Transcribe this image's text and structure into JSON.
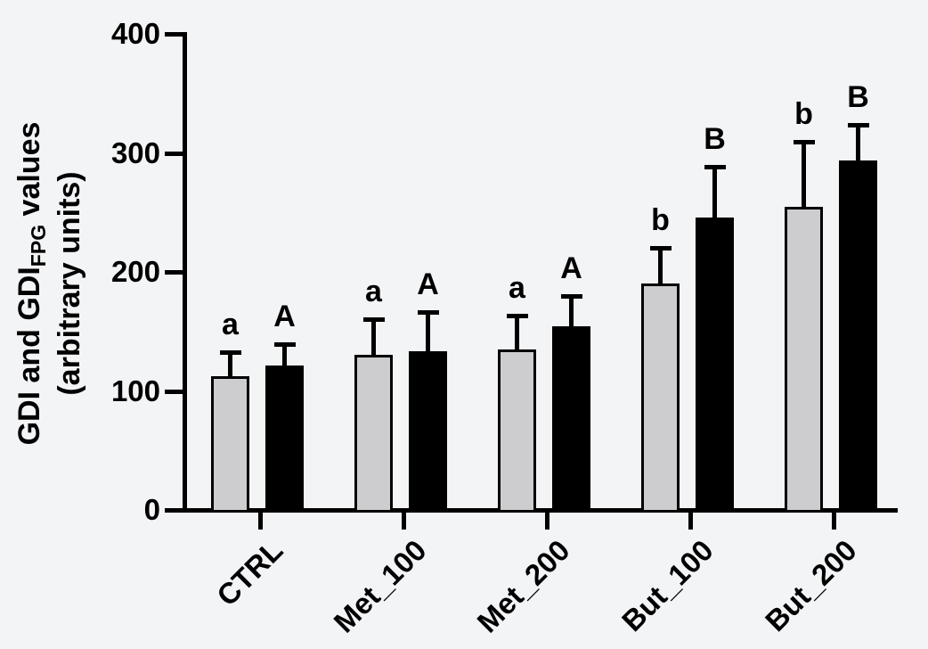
{
  "figure": {
    "background": "#f3f4f6",
    "axis_color": "#000000"
  },
  "chart_data": {
    "type": "bar",
    "title": "",
    "categories": [
      "CTRL",
      "Met_100",
      "Met_200",
      "But_100",
      "But_200"
    ],
    "series": [
      {
        "name": "GDI",
        "fill": "#cdcdcf",
        "edge_color": "#000000",
        "values": [
          112,
          130,
          135,
          190,
          255
        ],
        "errors_upper": [
          22,
          32,
          30,
          32,
          56
        ],
        "point_labels": [
          "a",
          "a",
          "a",
          "b",
          "b"
        ]
      },
      {
        "name": "GDI_FPG",
        "fill": "#000000",
        "edge_color": "#000000",
        "values": [
          121,
          133,
          154,
          246,
          294
        ],
        "errors_upper": [
          20,
          35,
          27,
          44,
          31
        ],
        "point_labels": [
          "A",
          "A",
          "A",
          "B",
          "B"
        ]
      }
    ],
    "ylabel_line1_prefix": "GDI and GDI",
    "ylabel_line1_subscript": "FPG",
    "ylabel_line1_suffix": " values",
    "ylabel_line2": "(arbitrary units)",
    "xlabel": "",
    "ylim": [
      0,
      400
    ],
    "yticks": [
      0,
      100,
      200,
      300,
      400
    ],
    "grid": false,
    "legend_position": "none",
    "error_bar_style": "upper with caps"
  }
}
